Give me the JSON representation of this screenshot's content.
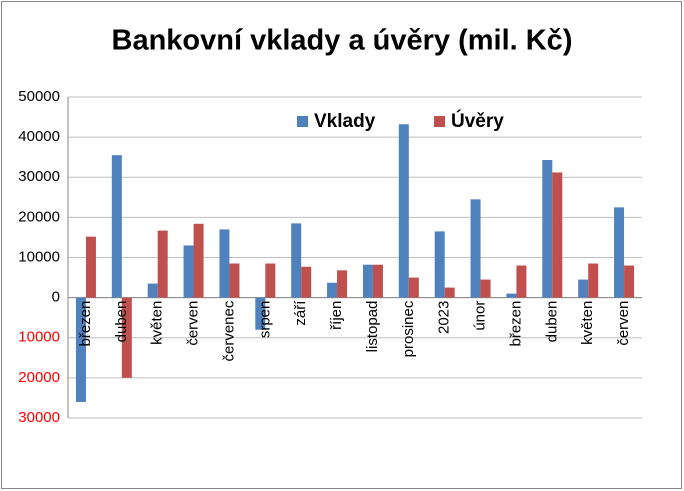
{
  "chart_data": {
    "type": "bar",
    "title": "Bankovní vklady a úvěry (mil. Kč)",
    "categories": [
      "březen",
      "duben",
      "květen",
      "červen",
      "červenec",
      "srpen",
      "září",
      "říjen",
      "listopad",
      "prosinec",
      "2023",
      "únor",
      "březen",
      "duben",
      "květen",
      "červen"
    ],
    "series": [
      {
        "name": "Vklady",
        "color": "#4f81bd",
        "values": [
          -26000,
          35500,
          3500,
          13000,
          17000,
          -8000,
          18500,
          3700,
          8200,
          43200,
          16500,
          24500,
          1000,
          34300,
          4500,
          22500
        ]
      },
      {
        "name": "Úvěry",
        "color": "#c0504d",
        "values": [
          15200,
          -20000,
          16700,
          18400,
          8500,
          8500,
          7700,
          6800,
          8200,
          5000,
          2500,
          4500,
          8000,
          31200,
          8500,
          8000
        ]
      }
    ],
    "ylim": [
      -30000,
      50000
    ],
    "yticks": [
      {
        "value": -30000,
        "label": "30000"
      },
      {
        "value": -20000,
        "label": "20000"
      },
      {
        "value": -10000,
        "label": "10000"
      },
      0,
      10000,
      20000,
      30000,
      40000,
      50000
    ],
    "grid": true,
    "legend": "top",
    "negative_tick_label_color": "#ff0000"
  }
}
